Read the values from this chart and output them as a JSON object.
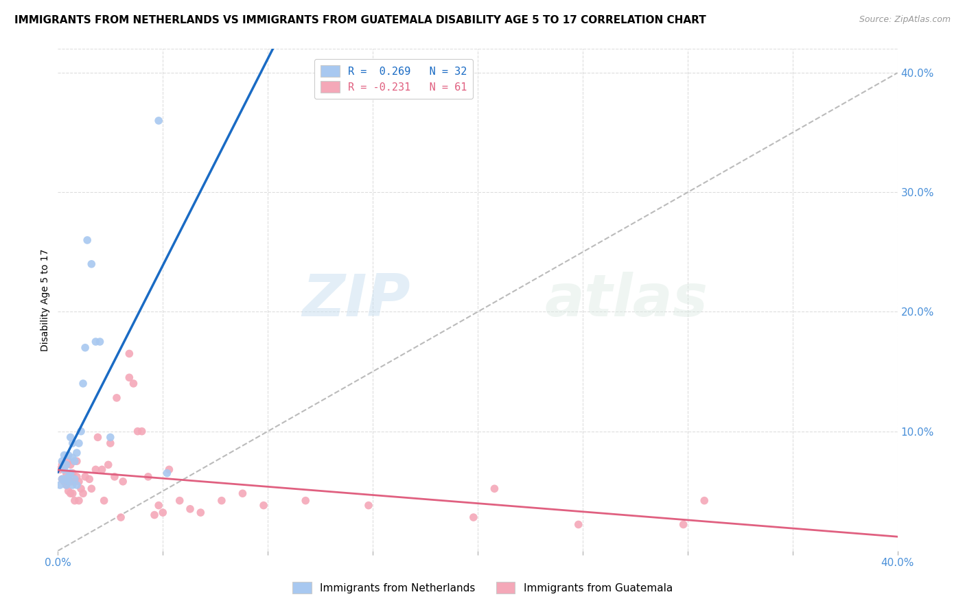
{
  "title": "IMMIGRANTS FROM NETHERLANDS VS IMMIGRANTS FROM GUATEMALA DISABILITY AGE 5 TO 17 CORRELATION CHART",
  "source": "Source: ZipAtlas.com",
  "ylabel": "Disability Age 5 to 17",
  "xlim": [
    0.0,
    0.4
  ],
  "ylim": [
    0.0,
    0.42
  ],
  "netherlands_color": "#a8c8f0",
  "guatemala_color": "#f4a8b8",
  "netherlands_line_color": "#1a6bc4",
  "guatemala_line_color": "#e06080",
  "dashed_line_color": "#bbbbbb",
  "legend_nl_label": "R =  0.269   N = 32",
  "legend_gt_label": "R = -0.231   N = 61",
  "watermark_zip": "ZIP",
  "watermark_atlas": "atlas",
  "netherlands_x": [
    0.001,
    0.002,
    0.002,
    0.003,
    0.003,
    0.003,
    0.004,
    0.004,
    0.004,
    0.005,
    0.005,
    0.005,
    0.006,
    0.006,
    0.007,
    0.007,
    0.007,
    0.008,
    0.008,
    0.009,
    0.009,
    0.01,
    0.011,
    0.012,
    0.013,
    0.014,
    0.016,
    0.018,
    0.02,
    0.025,
    0.048,
    0.052
  ],
  "netherlands_y": [
    0.055,
    0.075,
    0.06,
    0.08,
    0.06,
    0.068,
    0.06,
    0.072,
    0.055,
    0.08,
    0.062,
    0.058,
    0.065,
    0.095,
    0.078,
    0.055,
    0.09,
    0.06,
    0.075,
    0.055,
    0.082,
    0.09,
    0.1,
    0.14,
    0.17,
    0.26,
    0.24,
    0.175,
    0.175,
    0.095,
    0.36,
    0.065
  ],
  "guatemala_x": [
    0.001,
    0.002,
    0.002,
    0.003,
    0.003,
    0.004,
    0.004,
    0.004,
    0.005,
    0.005,
    0.005,
    0.006,
    0.006,
    0.006,
    0.007,
    0.007,
    0.007,
    0.008,
    0.008,
    0.009,
    0.009,
    0.01,
    0.01,
    0.011,
    0.012,
    0.013,
    0.015,
    0.016,
    0.018,
    0.019,
    0.021,
    0.022,
    0.024,
    0.025,
    0.027,
    0.028,
    0.03,
    0.031,
    0.034,
    0.034,
    0.036,
    0.038,
    0.04,
    0.043,
    0.046,
    0.048,
    0.05,
    0.053,
    0.058,
    0.063,
    0.068,
    0.078,
    0.088,
    0.098,
    0.118,
    0.148,
    0.198,
    0.208,
    0.248,
    0.298,
    0.308
  ],
  "guatemala_y": [
    0.068,
    0.06,
    0.072,
    0.058,
    0.07,
    0.06,
    0.065,
    0.055,
    0.05,
    0.06,
    0.075,
    0.048,
    0.058,
    0.072,
    0.048,
    0.058,
    0.065,
    0.042,
    0.058,
    0.062,
    0.075,
    0.042,
    0.058,
    0.052,
    0.048,
    0.062,
    0.06,
    0.052,
    0.068,
    0.095,
    0.068,
    0.042,
    0.072,
    0.09,
    0.062,
    0.128,
    0.028,
    0.058,
    0.165,
    0.145,
    0.14,
    0.1,
    0.1,
    0.062,
    0.03,
    0.038,
    0.032,
    0.068,
    0.042,
    0.035,
    0.032,
    0.042,
    0.048,
    0.038,
    0.042,
    0.038,
    0.028,
    0.052,
    0.022,
    0.022,
    0.042
  ],
  "nl_line_x": [
    0.0,
    0.3
  ],
  "gt_line_x": [
    0.0,
    0.4
  ],
  "ytick_positions": [
    0.0,
    0.1,
    0.2,
    0.3,
    0.4
  ],
  "ytick_labels": [
    "",
    "10.0%",
    "20.0%",
    "30.0%",
    "40.0%"
  ],
  "xtick_positions": [
    0.0,
    0.05,
    0.1,
    0.15,
    0.2,
    0.25,
    0.3,
    0.35,
    0.4
  ],
  "xtick_labels": [
    "0.0%",
    "",
    "",
    "",
    "",
    "",
    "",
    "",
    "40.0%"
  ],
  "tick_color": "#4a90d9",
  "grid_color": "#dddddd",
  "title_fontsize": 11,
  "source_fontsize": 9,
  "axis_fontsize": 11,
  "scatter_size": 70
}
